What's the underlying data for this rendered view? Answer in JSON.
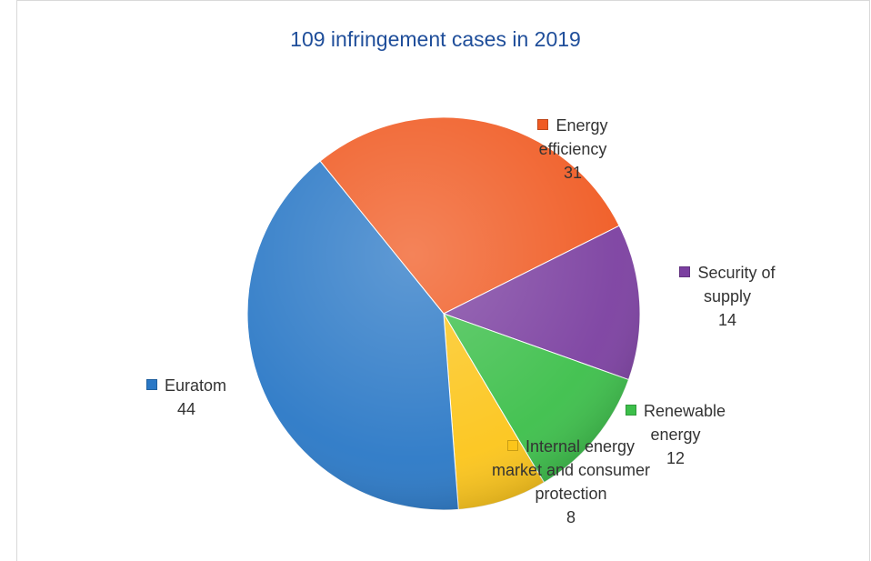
{
  "chart_data": {
    "type": "pie",
    "title": "109 infringement cases in 2019",
    "categories": [
      "Energy efficiency",
      "Security of supply",
      "Renewable energy",
      "Internal energy market and consumer protection",
      "Euratom"
    ],
    "values": [
      31,
      14,
      12,
      8,
      44
    ],
    "colors": [
      "#f05a22",
      "#7b3fa0",
      "#3cbf4a",
      "#fcc51a",
      "#2a78c6"
    ]
  }
}
